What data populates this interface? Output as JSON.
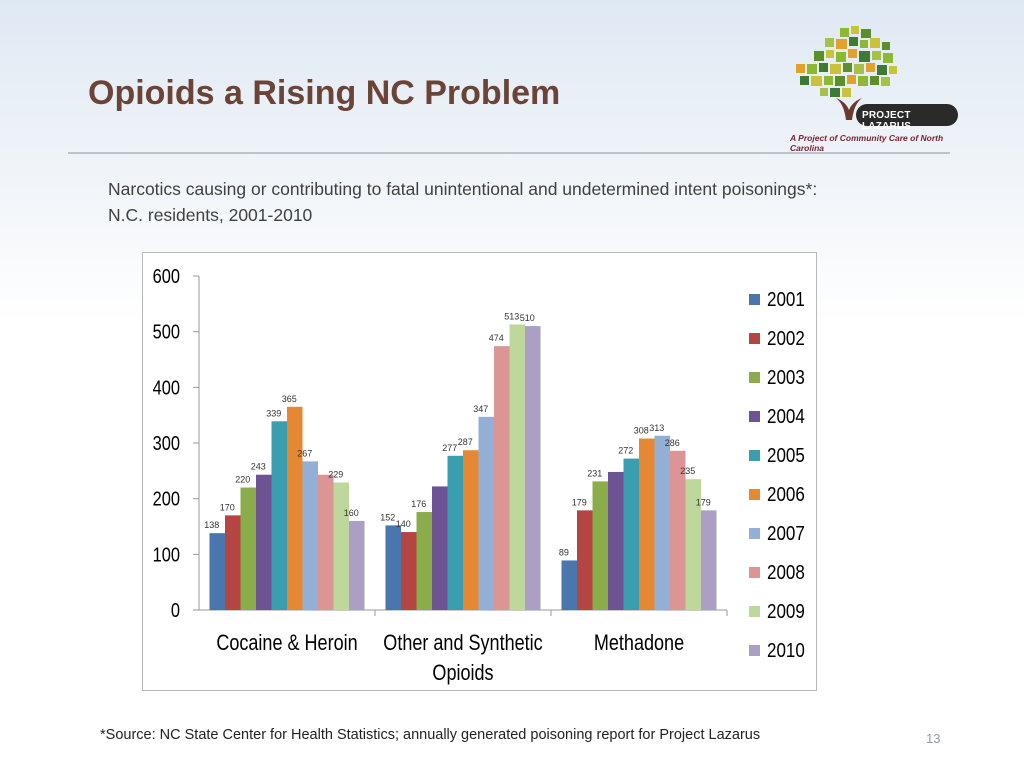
{
  "slide": {
    "title": "Opioids a Rising NC Problem",
    "subtitle": "Narcotics causing or contributing to fatal unintentional and undetermined intent poisonings*: N.C. residents, 2001-2010",
    "source": "*Source: NC State Center for Health Statistics; annually generated poisoning report for Project Lazarus",
    "page_number": "13"
  },
  "logo": {
    "badge_text": "PROJECT LAZARUS",
    "tagline": "A Project of Community Care of North Carolina",
    "colors": [
      "#5a8f2a",
      "#8cb832",
      "#c9c23a",
      "#e2a12b",
      "#3f7a35",
      "#a7c04a"
    ]
  },
  "chart_data": {
    "type": "bar",
    "categories": [
      "Cocaine & Heroin",
      "Other and Synthetic Opioids",
      "Methadone"
    ],
    "ylim": [
      0,
      600
    ],
    "yticks": [
      0,
      100,
      200,
      300,
      400,
      500,
      600
    ],
    "legend_position": "right",
    "grid": false,
    "series": [
      {
        "name": "2001",
        "color": "#4a76ae",
        "values": [
          138,
          152,
          89
        ]
      },
      {
        "name": "2002",
        "color": "#b34642",
        "values": [
          170,
          140,
          179
        ]
      },
      {
        "name": "2003",
        "color": "#8aac4a",
        "values": [
          220,
          176,
          231
        ]
      },
      {
        "name": "2004",
        "color": "#6d5394",
        "values": [
          243,
          222,
          248
        ]
      },
      {
        "name": "2005",
        "color": "#3a9db0",
        "values": [
          339,
          277,
          272
        ]
      },
      {
        "name": "2006",
        "color": "#e58833",
        "values": [
          365,
          287,
          308
        ]
      },
      {
        "name": "2007",
        "color": "#94afd6",
        "values": [
          267,
          347,
          313
        ]
      },
      {
        "name": "2008",
        "color": "#dc9495",
        "values": [
          243,
          474,
          286
        ]
      },
      {
        "name": "2009",
        "color": "#bed79a",
        "values": [
          229,
          513,
          235
        ]
      },
      {
        "name": "2010",
        "color": "#ac9fc5",
        "values": [
          160,
          510,
          179
        ]
      }
    ],
    "data_labels": [
      {
        "category": 0,
        "series": 0,
        "text": "138"
      },
      {
        "category": 0,
        "series": 1,
        "text": "170"
      },
      {
        "category": 0,
        "series": 2,
        "text": "220"
      },
      {
        "category": 0,
        "series": 3,
        "text": "243"
      },
      {
        "category": 0,
        "series": 4,
        "text": "339"
      },
      {
        "category": 0,
        "series": 5,
        "text": "365"
      },
      {
        "category": 0,
        "series": 6,
        "text": "267"
      },
      {
        "category": 0,
        "series": 8,
        "text": "229"
      },
      {
        "category": 0,
        "series": 9,
        "text": "160"
      },
      {
        "category": 1,
        "series": 0,
        "text": "152"
      },
      {
        "category": 1,
        "series": 1,
        "text": "140"
      },
      {
        "category": 1,
        "series": 2,
        "text": "176"
      },
      {
        "category": 1,
        "series": 4,
        "text": "277"
      },
      {
        "category": 1,
        "series": 5,
        "text": "287"
      },
      {
        "category": 1,
        "series": 6,
        "text": "347"
      },
      {
        "category": 1,
        "series": 7,
        "text": "474"
      },
      {
        "category": 1,
        "series": 8,
        "text": "513"
      },
      {
        "category": 1,
        "series": 9,
        "text": "510"
      },
      {
        "category": 2,
        "series": 0,
        "text": "89"
      },
      {
        "category": 2,
        "series": 1,
        "text": "179"
      },
      {
        "category": 2,
        "series": 2,
        "text": "231"
      },
      {
        "category": 2,
        "series": 4,
        "text": "272"
      },
      {
        "category": 2,
        "series": 5,
        "text": "308"
      },
      {
        "category": 2,
        "series": 6,
        "text": "313"
      },
      {
        "category": 2,
        "series": 7,
        "text": "286"
      },
      {
        "category": 2,
        "series": 8,
        "text": "235"
      },
      {
        "category": 2,
        "series": 9,
        "text": "179"
      }
    ]
  }
}
